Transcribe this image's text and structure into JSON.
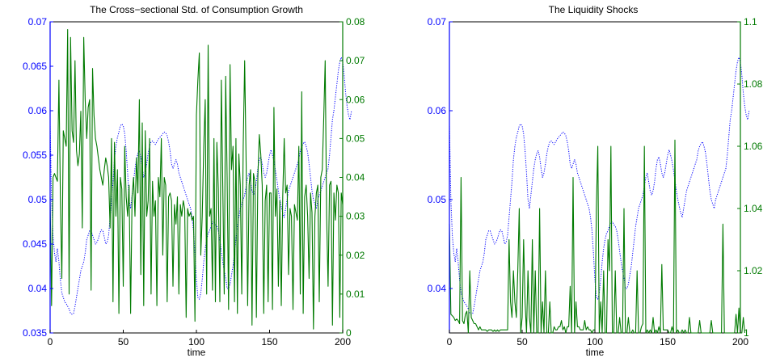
{
  "colors": {
    "left_series": "#0000ff",
    "right_series": "#007a00",
    "axis": "#000000"
  },
  "chart_data": [
    {
      "type": "line",
      "title": "The Cross−sectional Std. of Consumption Growth",
      "xlabel": "time",
      "xlim": [
        0,
        200
      ],
      "x_ticks": [
        "0",
        "50",
        "100",
        "150",
        "200"
      ],
      "y_left": {
        "lim": [
          0.035,
          0.07
        ],
        "ticks": [
          "0.035",
          "0.04",
          "0.045",
          "0.05",
          "0.055",
          "0.06",
          "0.065",
          "0.07"
        ],
        "color": "#0000ff"
      },
      "y_right": {
        "lim": [
          0,
          0.08
        ],
        "ticks": [
          "0",
          "0.01",
          "0.02",
          "0.03",
          "0.04",
          "0.05",
          "0.06",
          "0.07",
          "0.08"
        ],
        "color": "#007a00"
      },
      "grid": false,
      "series": [
        {
          "axis": "left",
          "style": "dotted",
          "color": "#0000ff",
          "x_start": 0,
          "x_step": 1,
          "values": [
            0.0585,
            0.05,
            0.046,
            0.044,
            0.043,
            0.0445,
            0.043,
            0.041,
            0.0395,
            0.039,
            0.0385,
            0.0383,
            0.038,
            0.0377,
            0.0372,
            0.0371,
            0.0372,
            0.038,
            0.039,
            0.04,
            0.041,
            0.042,
            0.0425,
            0.043,
            0.044,
            0.0455,
            0.046,
            0.0465,
            0.0465,
            0.046,
            0.0455,
            0.045,
            0.0452,
            0.0456,
            0.0462,
            0.0466,
            0.0465,
            0.0458,
            0.045,
            0.0452,
            0.046,
            0.048,
            0.05,
            0.052,
            0.0545,
            0.056,
            0.057,
            0.0576,
            0.0583,
            0.0585,
            0.0583,
            0.0574,
            0.0555,
            0.053,
            0.05,
            0.049,
            0.0505,
            0.052,
            0.0535,
            0.0545,
            0.0552,
            0.0555,
            0.0548,
            0.0535,
            0.0525,
            0.053,
            0.054,
            0.0552,
            0.056,
            0.0565,
            0.0566,
            0.0564,
            0.0562,
            0.0565,
            0.0568,
            0.057,
            0.0572,
            0.0574,
            0.0576,
            0.0575,
            0.0572,
            0.0565,
            0.0555,
            0.054,
            0.0535,
            0.054,
            0.0545,
            0.054,
            0.053,
            0.0525,
            0.052,
            0.0515,
            0.051,
            0.0505,
            0.05,
            0.0495,
            0.049,
            0.048,
            0.0465,
            0.044,
            0.041,
            0.039,
            0.0388,
            0.0395,
            0.041,
            0.043,
            0.0445,
            0.0455,
            0.0462,
            0.0465,
            0.047,
            0.0475,
            0.0475,
            0.0472,
            0.047,
            0.0465,
            0.0455,
            0.0442,
            0.043,
            0.042,
            0.0412,
            0.04,
            0.04,
            0.0405,
            0.0415,
            0.0425,
            0.044,
            0.0455,
            0.047,
            0.048,
            0.049,
            0.0495,
            0.05,
            0.0505,
            0.0515,
            0.0525,
            0.053,
            0.052,
            0.051,
            0.0505,
            0.051,
            0.052,
            0.0535,
            0.0545,
            0.0548,
            0.054,
            0.053,
            0.0525,
            0.053,
            0.054,
            0.055,
            0.0556,
            0.055,
            0.0543,
            0.0533,
            0.0522,
            0.051,
            0.05,
            0.0492,
            0.0485,
            0.048,
            0.049,
            0.05,
            0.051,
            0.0515,
            0.052,
            0.0525,
            0.053,
            0.0535,
            0.054,
            0.0545,
            0.0555,
            0.056,
            0.0563,
            0.0565,
            0.056,
            0.0553,
            0.054,
            0.0525,
            0.051,
            0.05,
            0.0495,
            0.049,
            0.05,
            0.0505,
            0.051,
            0.0515,
            0.052,
            0.0525,
            0.053,
            0.0535,
            0.055,
            0.057,
            0.059,
            0.06,
            0.0615,
            0.063,
            0.0645,
            0.0655,
            0.066,
            0.0655,
            0.064,
            0.062,
            0.0605,
            0.0595,
            0.059,
            0.06
          ]
        },
        {
          "axis": "right",
          "style": "solid",
          "color": "#007a00",
          "x_start": 0,
          "x_step": 1,
          "values": [
            0.035,
            0.007,
            0.04,
            0.041,
            0.04,
            0.039,
            0.065,
            0.035,
            0.014,
            0.052,
            0.05,
            0.048,
            0.078,
            0.01,
            0.076,
            0.052,
            0.049,
            0.07,
            0.047,
            0.043,
            0.046,
            0.057,
            0.027,
            0.076,
            0.06,
            0.05,
            0.058,
            0.06,
            0.011,
            0.068,
            0.056,
            0.05,
            0.048,
            0.045,
            0.042,
            0.04,
            0.038,
            0.042,
            0.045,
            0.043,
            0.04,
            0.027,
            0.05,
            0.008,
            0.049,
            0.03,
            0.042,
            0.005,
            0.04,
            0.037,
            0.012,
            0.048,
            0.035,
            0.03,
            0.038,
            0.005,
            0.035,
            0.04,
            0.03,
            0.045,
            0.036,
            0.06,
            0.015,
            0.054,
            0.007,
            0.052,
            0.03,
            0.034,
            0.05,
            0.01,
            0.039,
            0.03,
            0.034,
            0.007,
            0.04,
            0.035,
            0.05,
            0.02,
            0.04,
            0.038,
            0.008,
            0.035,
            0.036,
            0.034,
            0.012,
            0.033,
            0.028,
            0.035,
            0.01,
            0.033,
            0.03,
            0.034,
            0.032,
            0.004,
            0.032,
            0.03,
            0.031,
            0.029,
            0.03,
            0.003,
            0.056,
            0.065,
            0.072,
            0.02,
            0.03,
            0.048,
            0.06,
            0.01,
            0.074,
            0.03,
            0.032,
            0.011,
            0.05,
            0.008,
            0.049,
            0.037,
            0.008,
            0.065,
            0.038,
            0.01,
            0.066,
            0.04,
            0.006,
            0.069,
            0.042,
            0.048,
            0.008,
            0.05,
            0.005,
            0.046,
            0.038,
            0.01,
            0.048,
            0.07,
            0.044,
            0.007,
            0.038,
            0.042,
            0.002,
            0.041,
            0.039,
            0.004,
            0.04,
            0.051,
            0.046,
            0.038,
            0.005,
            0.034,
            0.038,
            0.008,
            0.036,
            0.036,
            0.006,
            0.058,
            0.03,
            0.037,
            0.012,
            0.034,
            0.007,
            0.035,
            0.05,
            0.036,
            0.038,
            0.015,
            0.032,
            0.03,
            0.006,
            0.033,
            0.031,
            0.029,
            0.048,
            0.01,
            0.062,
            0.005,
            0.035,
            0.038,
            0.03,
            0.014,
            0.036,
            0.031,
            0.001,
            0.03,
            0.036,
            0.038,
            0.008,
            0.04,
            0.042,
            0.055,
            0.07,
            0.03,
            0.012,
            0.038,
            0.039,
            0.002,
            0.036,
            0.029,
            0.038,
            0.036,
            0.004,
            0.036,
            0.033
          ]
        }
      ]
    },
    {
      "type": "line",
      "title": "The Liquidity Shocks",
      "xlabel": "time",
      "xlim": [
        0,
        200
      ],
      "x_ticks": [
        "0",
        "50",
        "100",
        "150",
        "200"
      ],
      "y_left": {
        "lim": [
          0.035,
          0.07
        ],
        "ticks": [
          "0.04",
          "0.05",
          "0.06",
          "0.07"
        ],
        "color": "#0000ff"
      },
      "y_right": {
        "lim": [
          1,
          1.1
        ],
        "ticks": [
          "1",
          "1.02",
          "1.04",
          "1.06",
          "1.08",
          "1.1"
        ],
        "color": "#007a00"
      },
      "grid": false,
      "series": [
        {
          "axis": "left",
          "style": "dotted",
          "color": "#0000ff",
          "x_start": 0,
          "x_step": 1,
          "values": [
            0.0585,
            0.05,
            0.046,
            0.044,
            0.043,
            0.0445,
            0.043,
            0.041,
            0.0395,
            0.039,
            0.0385,
            0.0383,
            0.038,
            0.0377,
            0.0372,
            0.0371,
            0.0372,
            0.038,
            0.039,
            0.04,
            0.041,
            0.042,
            0.0425,
            0.043,
            0.044,
            0.0455,
            0.046,
            0.0465,
            0.0465,
            0.046,
            0.0455,
            0.045,
            0.0452,
            0.0456,
            0.0462,
            0.0466,
            0.0465,
            0.0458,
            0.045,
            0.0452,
            0.046,
            0.048,
            0.05,
            0.052,
            0.0545,
            0.056,
            0.057,
            0.0576,
            0.0583,
            0.0585,
            0.0583,
            0.0574,
            0.0555,
            0.053,
            0.05,
            0.049,
            0.0505,
            0.052,
            0.0535,
            0.0545,
            0.0552,
            0.0555,
            0.0548,
            0.0535,
            0.0525,
            0.053,
            0.054,
            0.0552,
            0.056,
            0.0565,
            0.0566,
            0.0564,
            0.0562,
            0.0565,
            0.0568,
            0.057,
            0.0572,
            0.0574,
            0.0576,
            0.0575,
            0.0572,
            0.0565,
            0.0555,
            0.054,
            0.0535,
            0.054,
            0.0545,
            0.054,
            0.053,
            0.0525,
            0.052,
            0.0515,
            0.051,
            0.0505,
            0.05,
            0.0495,
            0.049,
            0.048,
            0.0465,
            0.044,
            0.041,
            0.039,
            0.0388,
            0.0395,
            0.041,
            0.043,
            0.0445,
            0.0455,
            0.0462,
            0.0465,
            0.047,
            0.0475,
            0.0475,
            0.0472,
            0.047,
            0.0465,
            0.0455,
            0.0442,
            0.043,
            0.042,
            0.0412,
            0.04,
            0.04,
            0.0405,
            0.0415,
            0.0425,
            0.044,
            0.0455,
            0.047,
            0.048,
            0.049,
            0.0495,
            0.05,
            0.0505,
            0.0515,
            0.0525,
            0.053,
            0.052,
            0.051,
            0.0505,
            0.051,
            0.052,
            0.0535,
            0.0545,
            0.0548,
            0.054,
            0.053,
            0.0525,
            0.053,
            0.054,
            0.055,
            0.0556,
            0.055,
            0.0543,
            0.0533,
            0.0522,
            0.051,
            0.05,
            0.0492,
            0.0485,
            0.048,
            0.049,
            0.05,
            0.051,
            0.0515,
            0.052,
            0.0525,
            0.053,
            0.0535,
            0.054,
            0.0545,
            0.0555,
            0.056,
            0.0563,
            0.0565,
            0.056,
            0.0553,
            0.054,
            0.0525,
            0.051,
            0.05,
            0.0495,
            0.049,
            0.05,
            0.0505,
            0.051,
            0.0515,
            0.052,
            0.0525,
            0.053,
            0.0535,
            0.055,
            0.057,
            0.059,
            0.06,
            0.0615,
            0.063,
            0.0645,
            0.0655,
            0.066,
            0.0655,
            0.064,
            0.062,
            0.0605,
            0.0595,
            0.059,
            0.06
          ]
        },
        {
          "axis": "right",
          "style": "solid",
          "color": "#007a00",
          "x_start": 0,
          "x_step": 1,
          "values": [
            1.035,
            1.006,
            1.0055,
            1.005,
            1.004,
            1.0045,
            1.004,
            1.003,
            1.05,
            1.004,
            1.003,
            1.006,
            1.007,
            1.0,
            1.02,
            1.005,
            1.004,
            1.003,
            1.003,
            1.002,
            1.001,
            1.002,
            1.001,
            1.001,
            1.001,
            1.001,
            1.0005,
            1.001,
            1.001,
            1.001,
            1.0005,
            1.001,
            1.0005,
            1.001,
            1.0005,
            1.001,
            1.001,
            1.001,
            1.001,
            1.001,
            1.001,
            1.03,
            1.01,
            1.005,
            1.02,
            1.01,
            1.005,
            1.02,
            1.04,
            1.0,
            1.005,
            1.03,
            1.01,
            1.0,
            1.02,
            1.005,
            1.0,
            1.03,
            1.0,
            1.02,
            1.0,
            1.0,
            1.04,
            1.0,
            1.01,
            1.0,
            1.02,
            1.0,
            1.0,
            1.01,
            1.0,
            1.0,
            1.002,
            1.001,
            1.001,
            1.002,
            1.002,
            1.004,
            1.001,
            1.002,
            1.0,
            1.002,
            1.002,
            1.015,
            1.0,
            1.05,
            1.0,
            1.01,
            1.002,
            1.002,
            1.001,
            1.001,
            1.001,
            1.004,
            1.001,
            1.002,
            1.001,
            1.001,
            1.0,
            1.001,
            1.001,
            1.04,
            1.06,
            1.0,
            1.01,
            1.0,
            1.02,
            1.0,
            1.0,
            1.03,
            1.02,
            1.06,
            1.0,
            1.0,
            1.02,
            1.0,
            1.0,
            1.005,
            1.0,
            1.0,
            1.04,
            1.0,
            1.0,
            1.005,
            1.0,
            1.0,
            1.001,
            1.0,
            1.0,
            1.02,
            1.0,
            1.0,
            1.002,
            1.003,
            1.06,
            1.0,
            1.001,
            1.0,
            1.001,
            1.0,
            1.005,
            1.0,
            1.001,
            1.0,
            1.002,
            1.0,
            1.022,
            1.001,
            1.001,
            1.001,
            1.001,
            1.0,
            1.0,
            1.002,
            1.0,
            1.062,
            1.0,
            1.001,
            1.0,
            1.0,
            1.001,
            1.0,
            1.001,
            1.0,
            1.0,
            1.005,
            1.0,
            1.0,
            1.0,
            1.0,
            1.0,
            1.0,
            1.004,
            1.0,
            1.0,
            1.0,
            1.0,
            1.0,
            1.0,
            1.0,
            1.004,
            1.0,
            1.0,
            1.0,
            1.0,
            1.0,
            1.0,
            1.0,
            1.035,
            1.0,
            1.0,
            1.0,
            1.0,
            1.0,
            1.0,
            1.0,
            1.0,
            1.006,
            1.0,
            1.008,
            1.0,
            1.0,
            1.005,
            1.0
          ]
        }
      ]
    }
  ]
}
